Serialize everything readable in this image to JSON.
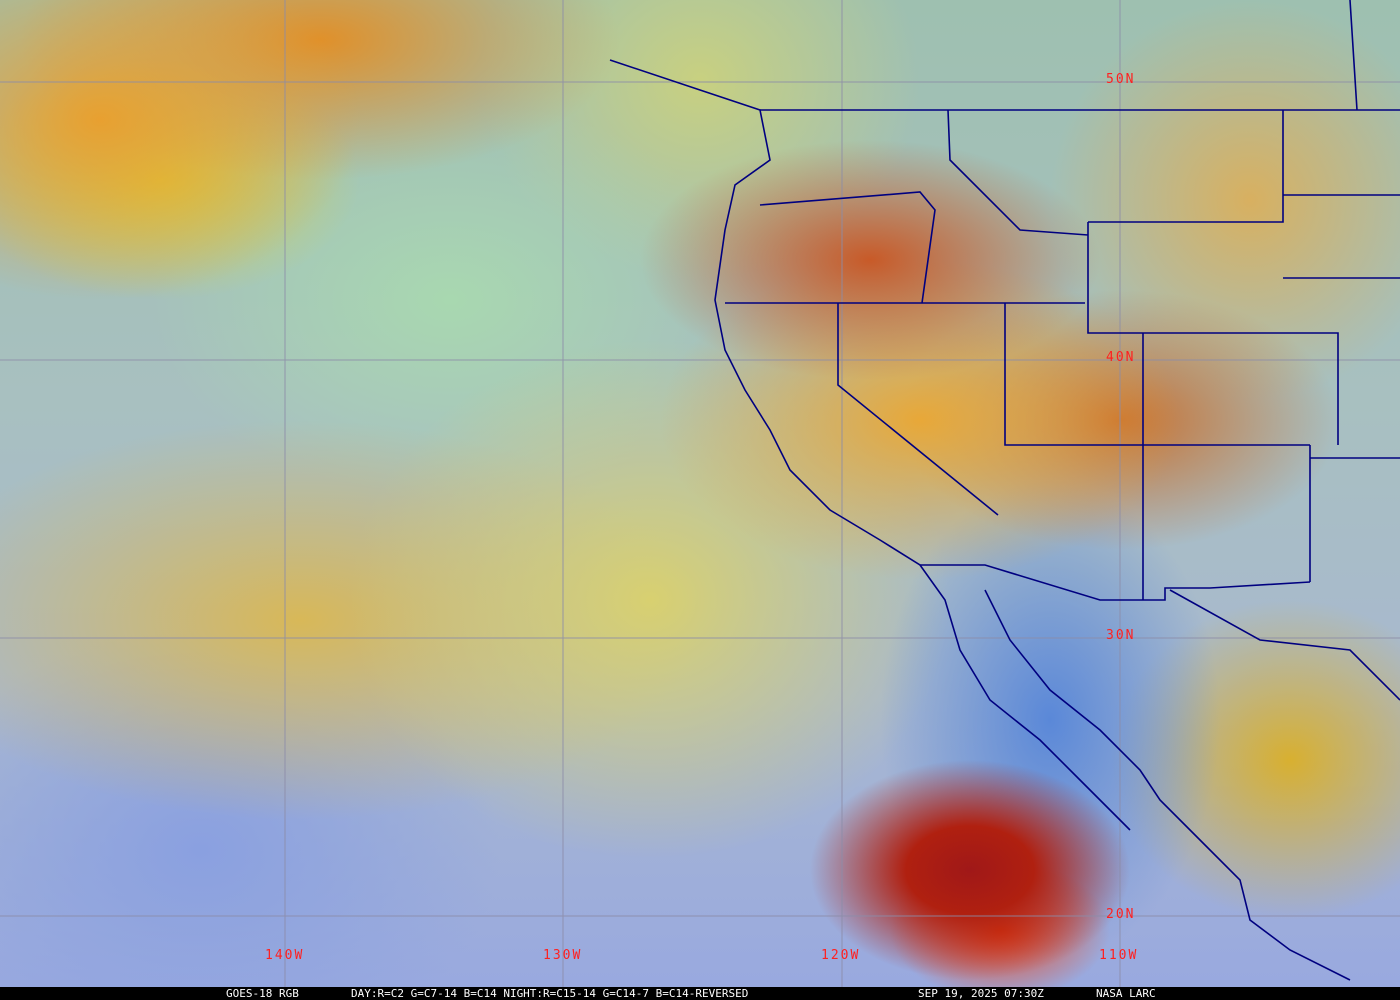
{
  "imagery": {
    "satellite_product": "GOES-18 RGB",
    "recipe": "DAY:R=C2 G=C7-14 B=C14 NIGHT:R=C15-14 G=C14-7 B=C14-REVERSED",
    "timestamp": "SEP 19, 2025 07:30Z",
    "credit": "NASA LARC"
  },
  "grid": {
    "latitude_labels": [
      "50N",
      "40N",
      "30N",
      "20N"
    ],
    "longitude_labels": [
      "140W",
      "130W",
      "120W",
      "110W"
    ],
    "grid_color": "#9090a0",
    "label_color": "#ff2020",
    "boundary_color": "#000080"
  }
}
